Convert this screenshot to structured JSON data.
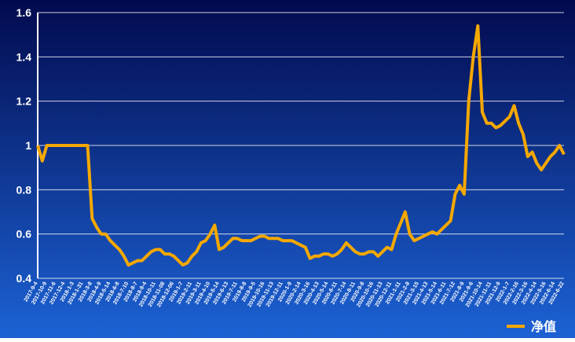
{
  "chart_data": {
    "type": "line",
    "categories": [
      "2017-9-4",
      null,
      "2017-10-9",
      null,
      "2017-11-6",
      null,
      "2017-12-4",
      null,
      "2018-1-3",
      null,
      "2018-1-31",
      null,
      "2018-3-8",
      null,
      "2018-4-9",
      null,
      "2018-5-14",
      null,
      "2018-6-8",
      null,
      "2018-7-10",
      null,
      "2018-8-7",
      null,
      "2018-9-4",
      null,
      "2018-10-11",
      null,
      "2018-11-08",
      null,
      "2018-12-06",
      null,
      "2019-1-7",
      null,
      "2019-2-11",
      null,
      "2019-3-11",
      null,
      "2019-4-10",
      null,
      "2019-5-14",
      null,
      "2019-6-13",
      null,
      "2019-7-11",
      null,
      "2019-8-8",
      null,
      "2019-9-5",
      null,
      "2019-10-16",
      null,
      "2019-11-13",
      null,
      "2019-12-11",
      null,
      "2020-1-9",
      null,
      "2020-2-14",
      null,
      "2020-3-16",
      null,
      "2020-4-13",
      null,
      "2020-5-14",
      null,
      "2020-6-11",
      null,
      "2020-7-14",
      null,
      "2020-8-11",
      null,
      "2020-9-8",
      null,
      "2020-10-16",
      null,
      "2020-11-13",
      null,
      "2020-12-11",
      null,
      "2021-1-11",
      null,
      "2021-2-8",
      null,
      "2021-3-15",
      null,
      "2021-4-13",
      null,
      "2021-5-14",
      null,
      "2021-6-11",
      null,
      "2021-7-12",
      null,
      "2021-8-9",
      null,
      "2021-9-6",
      null,
      "2021-10-14",
      null,
      "2021-11-11",
      null,
      "2021-12-9",
      null,
      "2022-1-7",
      null,
      "2022-2-16",
      null,
      "2022-3-16",
      null,
      "2022-4-14",
      null,
      "2022-5-16",
      null,
      "2022-6-14",
      null,
      "2022-6-22"
    ],
    "series": [
      {
        "name": "净值",
        "color": "#f5a800",
        "values": [
          1.0,
          0.93,
          1.0,
          1.0,
          1.0,
          1.0,
          1.0,
          1.0,
          1.0,
          1.0,
          1.0,
          1.0,
          0.67,
          0.63,
          0.6,
          0.6,
          0.57,
          0.55,
          0.53,
          0.5,
          0.46,
          0.47,
          0.48,
          0.48,
          0.5,
          0.52,
          0.53,
          0.53,
          0.51,
          0.51,
          0.5,
          0.48,
          0.46,
          0.47,
          0.5,
          0.52,
          0.56,
          0.57,
          0.6,
          0.64,
          0.53,
          0.54,
          0.56,
          0.58,
          0.58,
          0.57,
          0.57,
          0.57,
          0.58,
          0.59,
          0.59,
          0.58,
          0.58,
          0.58,
          0.57,
          0.57,
          0.57,
          0.56,
          0.55,
          0.54,
          0.49,
          0.5,
          0.5,
          0.51,
          0.51,
          0.5,
          0.51,
          0.53,
          0.56,
          0.54,
          0.52,
          0.51,
          0.51,
          0.52,
          0.52,
          0.5,
          0.52,
          0.54,
          0.53,
          0.6,
          0.65,
          0.7,
          0.6,
          0.57,
          0.58,
          0.59,
          0.6,
          0.61,
          0.6,
          0.62,
          0.64,
          0.66,
          0.78,
          0.82,
          0.78,
          1.2,
          1.4,
          1.54,
          1.15,
          1.1,
          1.1,
          1.08,
          1.09,
          1.11,
          1.13,
          1.18,
          1.1,
          1.05,
          0.95,
          0.97,
          0.92,
          0.89,
          0.92,
          0.95,
          0.97,
          1.0,
          0.96
        ]
      }
    ],
    "ylim": [
      0.4,
      1.6
    ],
    "yticks": [
      0.4,
      0.6,
      0.8,
      1,
      1.2,
      1.4,
      1.6
    ],
    "grid": true,
    "legend": "bottom-right"
  }
}
